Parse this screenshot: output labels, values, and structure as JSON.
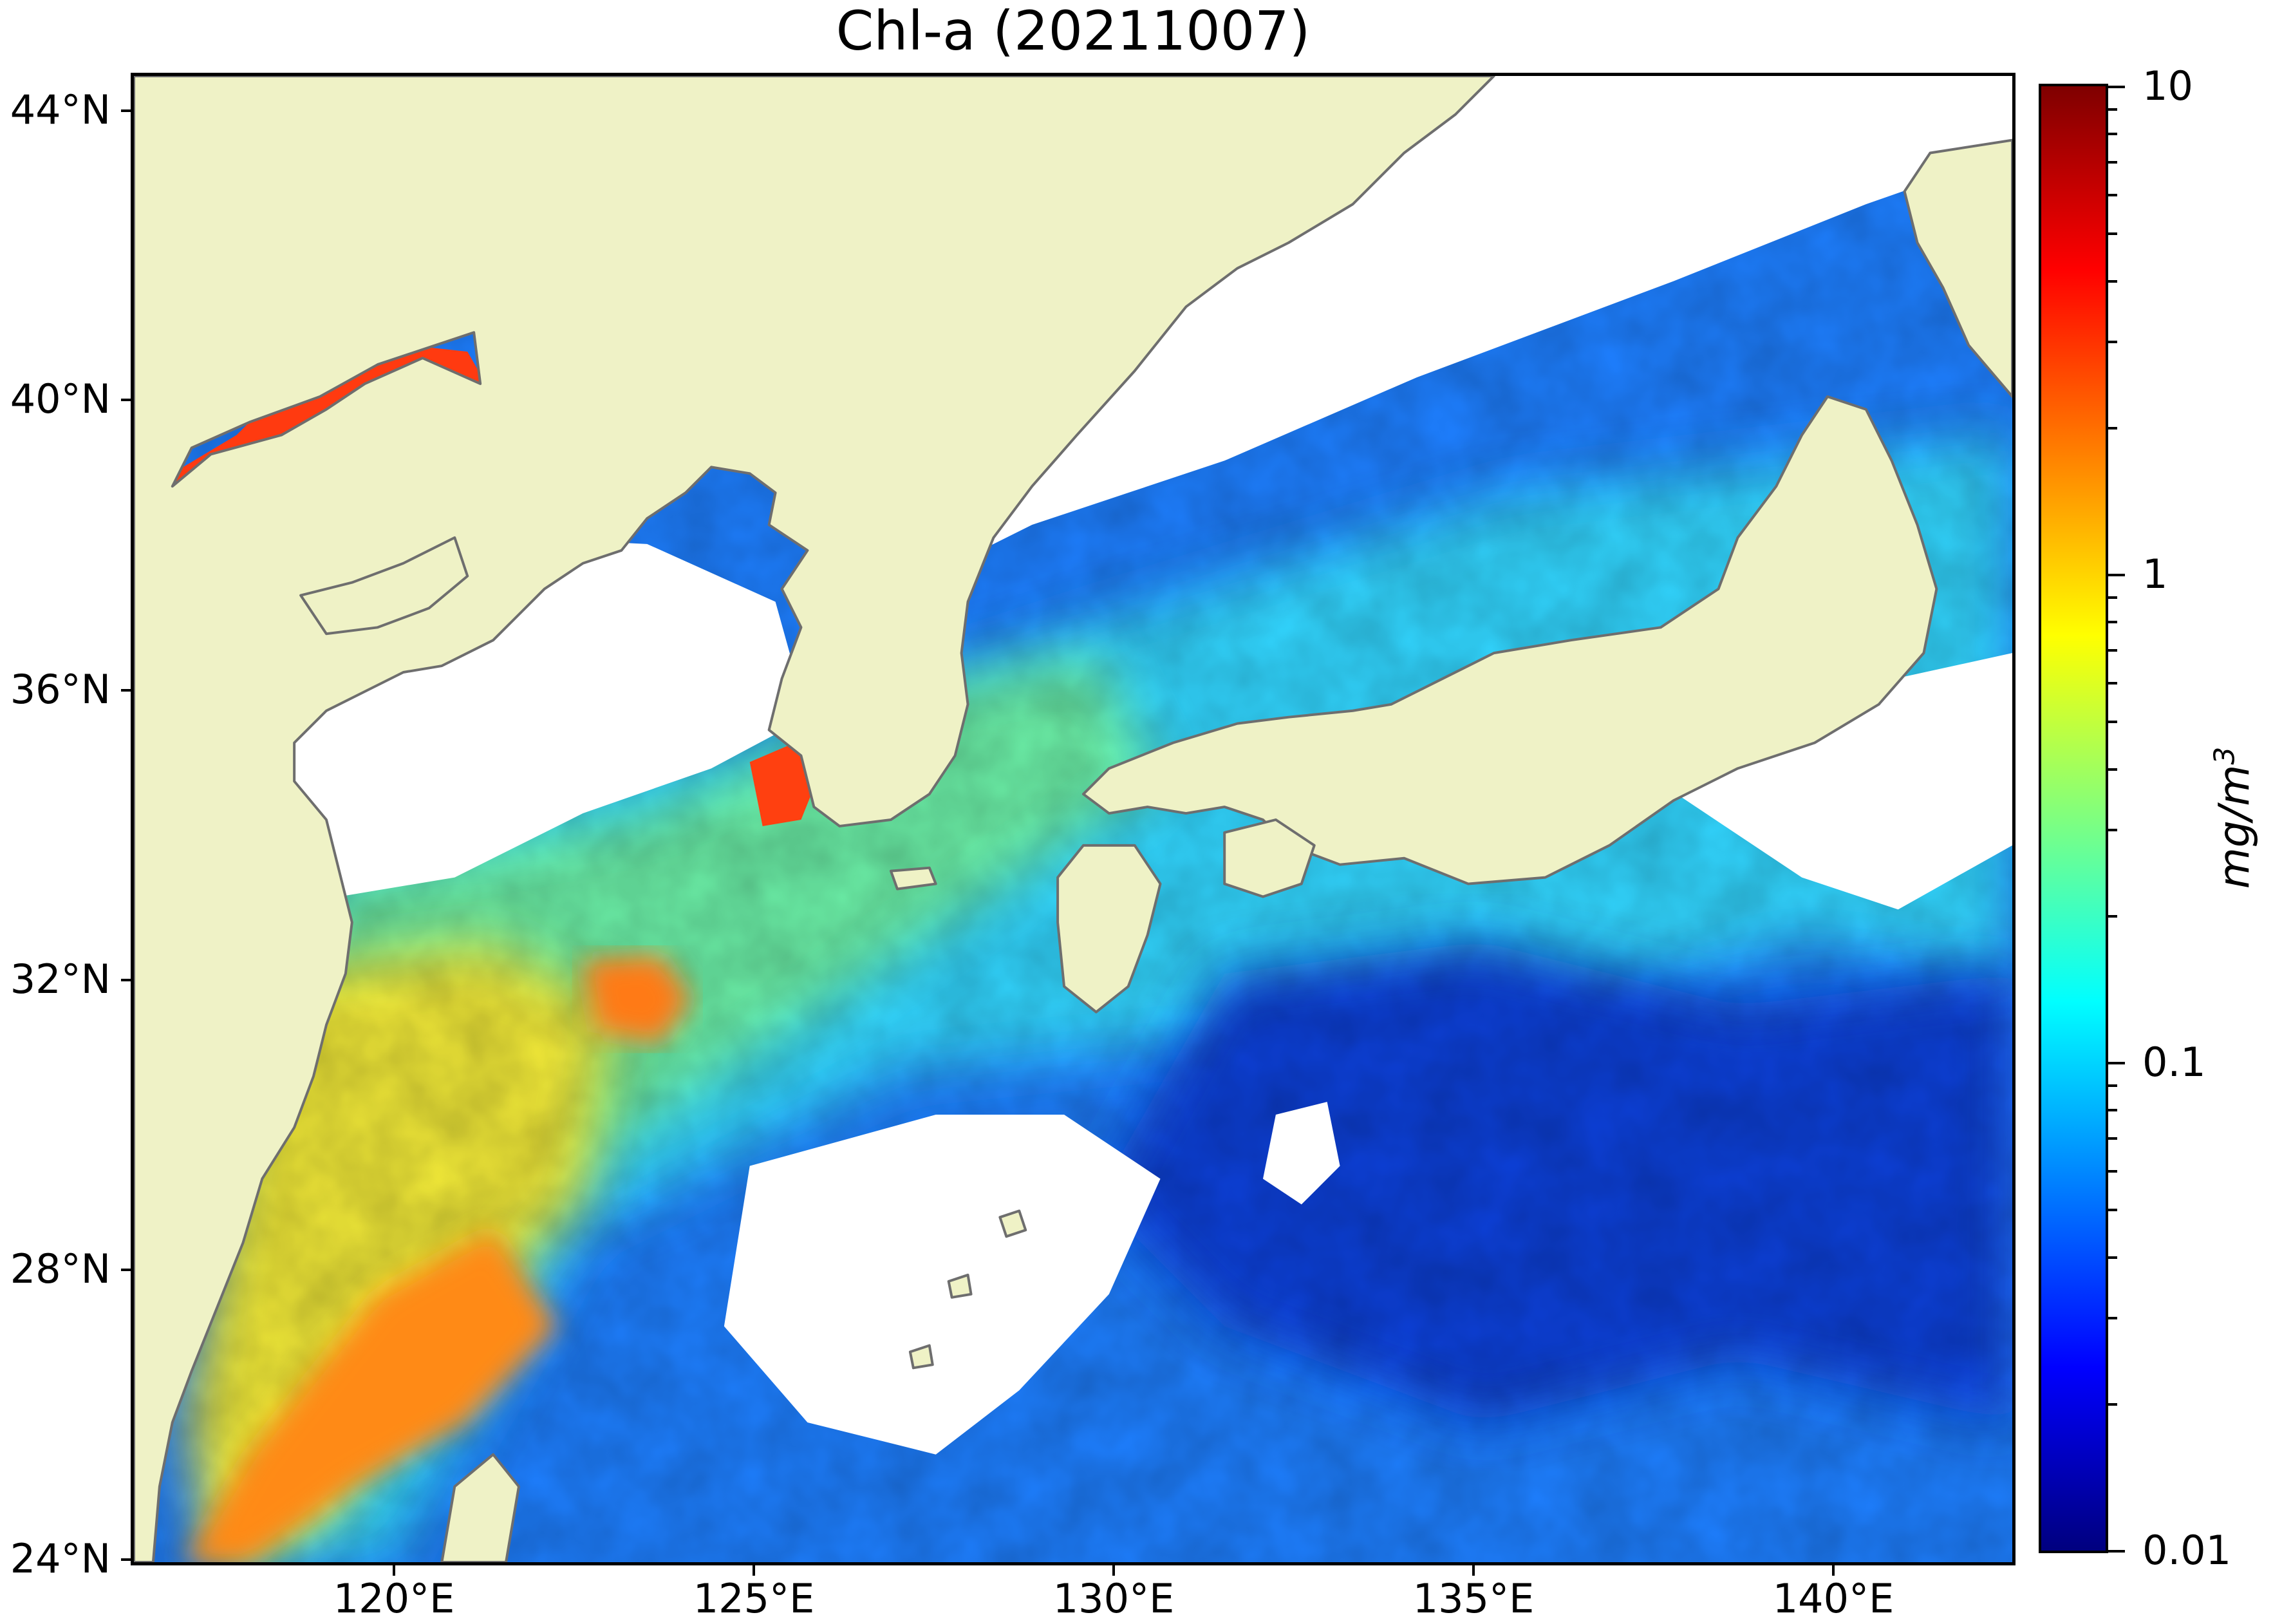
{
  "title": "Chl-a (20211007)",
  "map": {
    "lat_ticks": [
      "44°N",
      "40°N",
      "36°N",
      "32°N",
      "28°N",
      "24°N"
    ],
    "lon_ticks": [
      "120°E",
      "125°E",
      "130°E",
      "135°E",
      "140°E"
    ],
    "extent": {
      "lon_min": 116.9,
      "lon_max": 143.1,
      "lat_min": 24.0,
      "lat_max": 44.5
    },
    "colors": {
      "land": "#eff2c6",
      "coastline": "#6e6e6e",
      "cloud_mask": "#ffffff"
    }
  },
  "colorbar": {
    "unit_main": "mg/m",
    "unit_sup": "3",
    "scale": "log",
    "range": [
      0.01,
      10
    ],
    "tick_labels": [
      "10",
      "1",
      "0.1",
      "0.01"
    ],
    "colormap": "jet",
    "stops": [
      "#00007f",
      "#0000ff",
      "#007fff",
      "#00ffff",
      "#7fff7f",
      "#ffff00",
      "#ff7f00",
      "#ff0000",
      "#7f0000"
    ]
  }
}
